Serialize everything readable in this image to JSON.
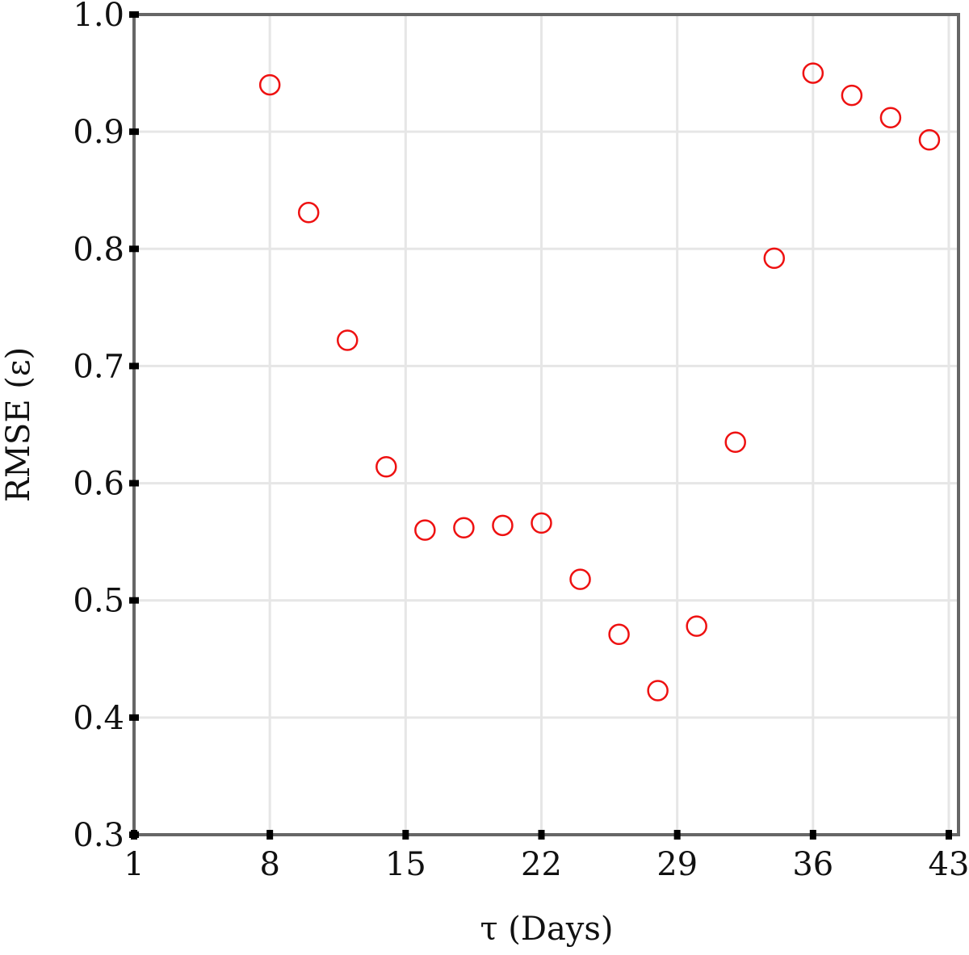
{
  "chart_data": {
    "type": "scatter",
    "title": "",
    "xlabel": "τ (Days)",
    "ylabel": "RMSE (ε)",
    "xlim": [
      1,
      43.5
    ],
    "ylim": [
      0.3,
      1.0
    ],
    "x_ticks": [
      "1",
      "8",
      "15",
      "22",
      "29",
      "36",
      "43"
    ],
    "y_ticks": [
      "0.3",
      "0.4",
      "0.5",
      "0.6",
      "0.7",
      "0.8",
      "0.9",
      "1.0"
    ],
    "grid": true,
    "marker": "open-circle",
    "marker_color": "#ee1111",
    "x": [
      8,
      10,
      12,
      14,
      16,
      18,
      20,
      22,
      24,
      26,
      28,
      30,
      32,
      34,
      36,
      38,
      40,
      42
    ],
    "y": [
      0.94,
      0.831,
      0.722,
      0.614,
      0.56,
      0.562,
      0.564,
      0.566,
      0.518,
      0.471,
      0.423,
      0.478,
      0.635,
      0.792,
      0.95,
      0.931,
      0.912,
      0.893
    ]
  }
}
